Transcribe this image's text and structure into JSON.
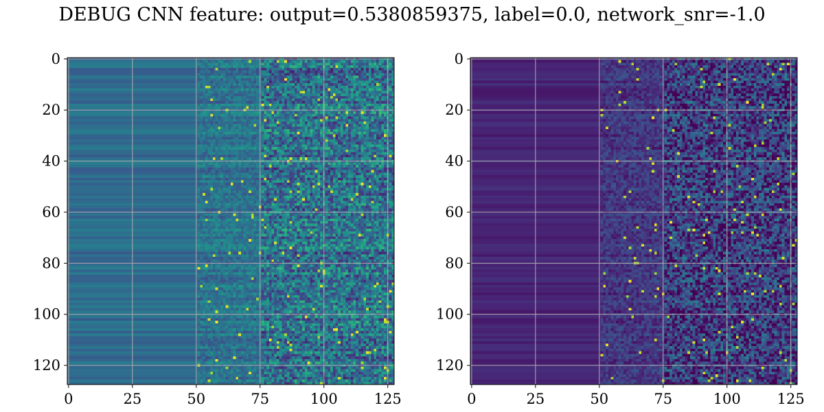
{
  "suptitle": "DEBUG CNN feature: output=0.5380859375, label=0.0, network_snr=-1.0",
  "colormap": "viridis",
  "colors": {
    "grid": "#b0b0b0",
    "axes": "#000000"
  },
  "chart_data": [
    {
      "type": "heatmap",
      "title": "",
      "xlabel": "",
      "ylabel": "",
      "shape": [
        128,
        128
      ],
      "xlim": [
        -0.5,
        127.5
      ],
      "ylim": [
        127.5,
        -0.5
      ],
      "xticks": [
        0,
        25,
        50,
        75,
        100,
        125
      ],
      "yticks": [
        0,
        20,
        40,
        60,
        80,
        100,
        120
      ],
      "grid": true,
      "description_of_values": "columns 0-50 smooth horizontal banding (mid blue/teal), noise increasing toward right, bright yellow speckle beyond column 75",
      "value_range": [
        0.0,
        1.0
      ],
      "column_regions": [
        {
          "x_range": [
            0,
            50
          ],
          "base": 0.35,
          "noise": 0.03
        },
        {
          "x_range": [
            50,
            75
          ],
          "base": 0.38,
          "noise": 0.12
        },
        {
          "x_range": [
            75,
            127
          ],
          "base": 0.38,
          "noise": 0.3
        }
      ]
    },
    {
      "type": "heatmap",
      "title": "",
      "xlabel": "",
      "ylabel": "",
      "shape": [
        128,
        128
      ],
      "xlim": [
        -0.5,
        127.5
      ],
      "ylim": [
        127.5,
        -0.5
      ],
      "xticks": [
        0,
        25,
        50,
        75,
        100,
        125
      ],
      "yticks": [
        0,
        20,
        40,
        60,
        80,
        100,
        120
      ],
      "grid": true,
      "description_of_values": "dark purple left region with faint banding, noise with teal/green/yellow speckle increasing beyond column 50",
      "value_range": [
        0.0,
        1.0
      ],
      "column_regions": [
        {
          "x_range": [
            0,
            50
          ],
          "base": 0.1,
          "noise": 0.04
        },
        {
          "x_range": [
            50,
            75
          ],
          "base": 0.16,
          "noise": 0.12
        },
        {
          "x_range": [
            75,
            127
          ],
          "base": 0.18,
          "noise": 0.3
        }
      ]
    }
  ]
}
